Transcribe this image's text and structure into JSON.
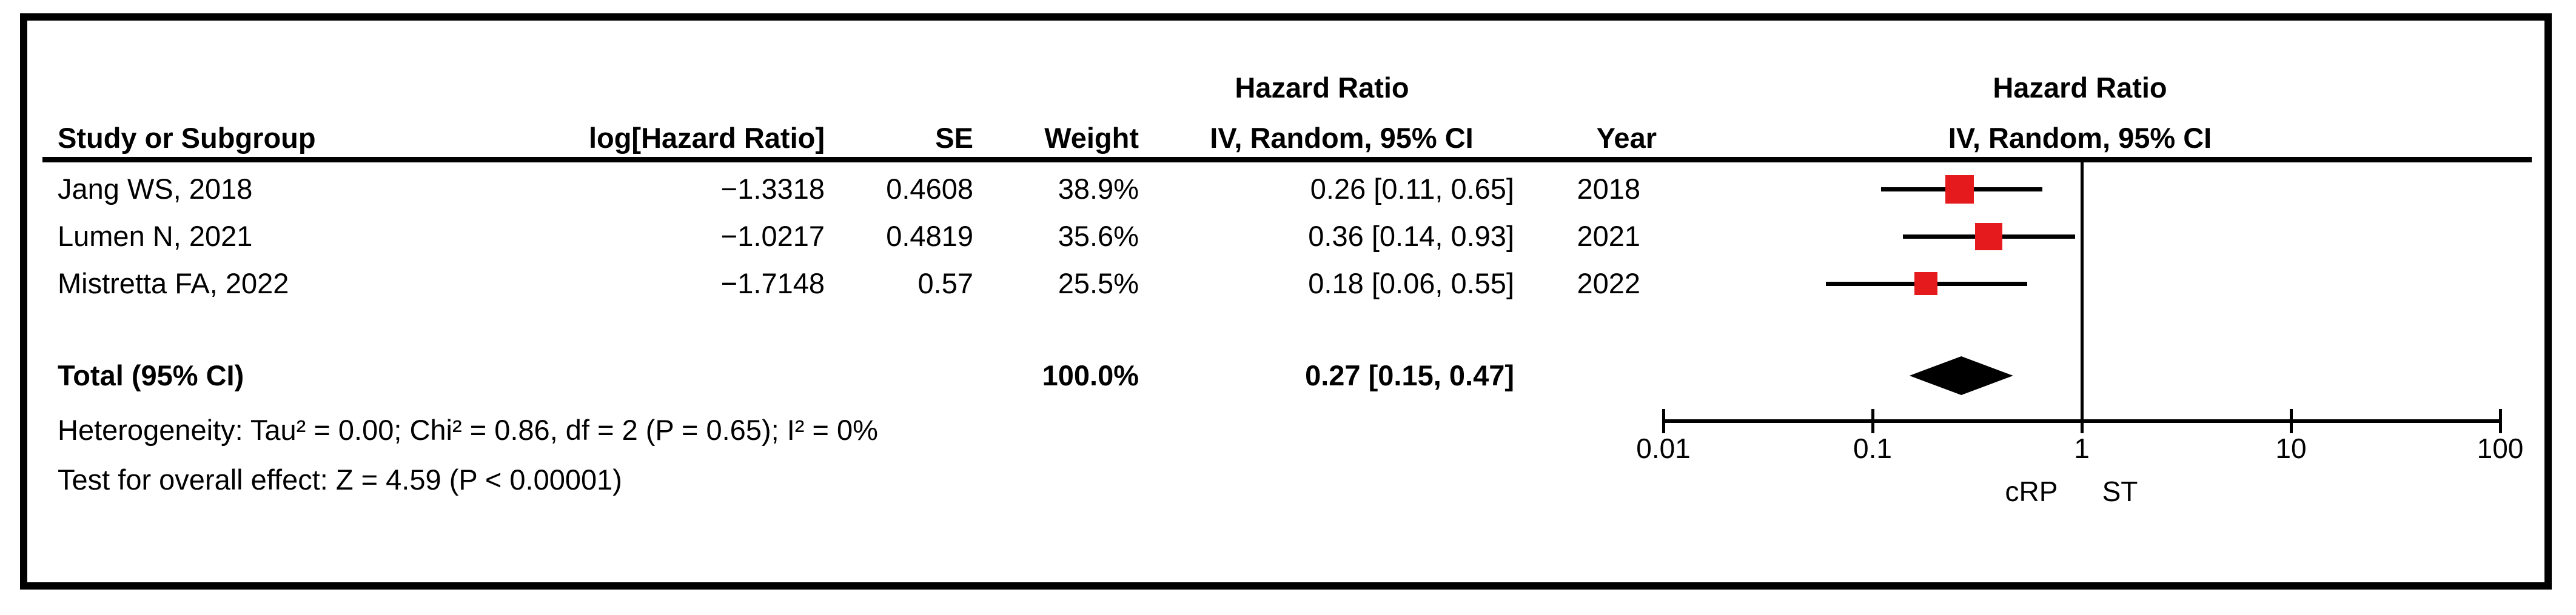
{
  "header": {
    "effect_title_left": "Hazard Ratio",
    "effect_title_right": "Hazard Ratio",
    "effect_subtitle_right": "IV, Random, 95% CI",
    "columns": {
      "study": "Study or Subgroup",
      "log_hr": "log[Hazard Ratio]",
      "se": "SE",
      "weight": "Weight",
      "ci": "IV, Random, 95% CI",
      "year": "Year"
    }
  },
  "rows": [
    {
      "study": "Jang WS, 2018",
      "log_hr": "−1.3318",
      "se": "0.4608",
      "weight": "38.9%",
      "ci": "0.26 [0.11, 0.65]",
      "year": "2018"
    },
    {
      "study": "Lumen N, 2021",
      "log_hr": "−1.0217",
      "se": "0.4819",
      "weight": "35.6%",
      "ci": "0.36 [0.14, 0.93]",
      "year": "2021"
    },
    {
      "study": "Mistretta FA, 2022",
      "log_hr": "−1.7148",
      "se": "0.57",
      "weight": "25.5%",
      "ci": "0.18 [0.06, 0.55]",
      "year": "2022"
    }
  ],
  "total": {
    "label": "Total (95% CI)",
    "weight": "100.0%",
    "ci": "0.27 [0.15, 0.47]"
  },
  "footnotes": {
    "heterogeneity": "Heterogeneity: Tau² = 0.00; Chi² = 0.86, df = 2 (P = 0.65); I² = 0%",
    "overall_effect": "Test for overall effect: Z = 4.59 (P < 0.00001)"
  },
  "chart_data": {
    "type": "forest",
    "x_scale": "log10",
    "axis_range": [
      0.01,
      100
    ],
    "axis_ticks": [
      "0.01",
      "0.1",
      "1",
      "10",
      "100"
    ],
    "null_line": 1,
    "favours_left": "cRP",
    "favours_right": "ST",
    "marker_color": "#e41a1c",
    "diamond_color": "#000000",
    "studies": [
      {
        "name": "Jang WS, 2018",
        "hr": 0.26,
        "ci_low": 0.11,
        "ci_high": 0.65,
        "weight_pct": 38.9,
        "year": 2018
      },
      {
        "name": "Lumen N, 2021",
        "hr": 0.36,
        "ci_low": 0.14,
        "ci_high": 0.93,
        "weight_pct": 35.6,
        "year": 2021
      },
      {
        "name": "Mistretta FA, 2022",
        "hr": 0.18,
        "ci_low": 0.06,
        "ci_high": 0.55,
        "weight_pct": 25.5,
        "year": 2022
      }
    ],
    "total": {
      "hr": 0.27,
      "ci_low": 0.15,
      "ci_high": 0.47,
      "weight_pct": 100.0
    }
  }
}
